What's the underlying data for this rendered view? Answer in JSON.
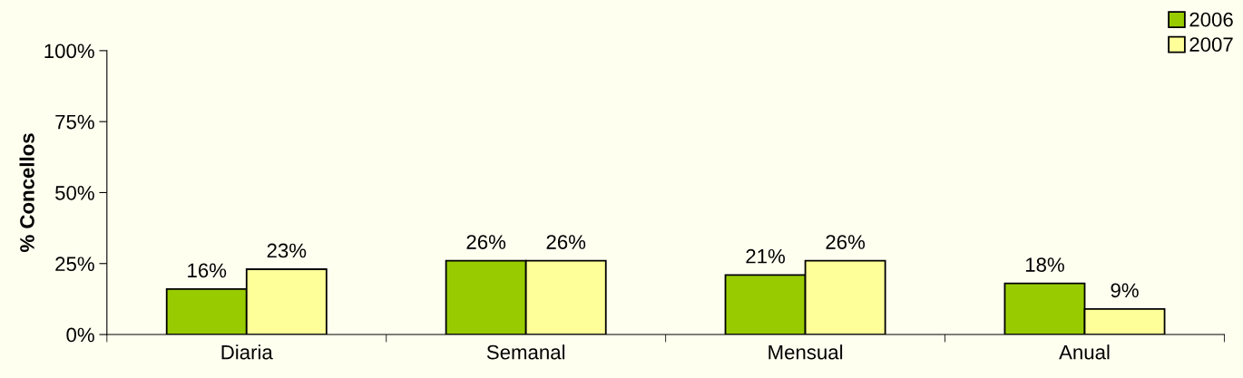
{
  "chart_data": {
    "type": "bar",
    "ylabel": "% Concellos",
    "categories": [
      "Diaria",
      "Semanal",
      "Mensual",
      "Anual"
    ],
    "series": [
      {
        "name": "2006",
        "color": "#99cc00",
        "values": [
          16,
          26,
          21,
          18
        ],
        "value_labels": [
          "16%",
          "26%",
          "21%",
          "18%"
        ]
      },
      {
        "name": "2007",
        "color": "#ffff99",
        "values": [
          23,
          26,
          26,
          9
        ],
        "value_labels": [
          "23%",
          "26%",
          "26%",
          "9%"
        ]
      }
    ],
    "ylim": [
      0,
      100
    ],
    "yticks": [
      {
        "value": 0,
        "label": "0%"
      },
      {
        "value": 25,
        "label": "25%"
      },
      {
        "value": 50,
        "label": "50%"
      },
      {
        "value": 75,
        "label": "75%"
      },
      {
        "value": 100,
        "label": "100%"
      }
    ],
    "grid": false,
    "legend": "top right"
  }
}
